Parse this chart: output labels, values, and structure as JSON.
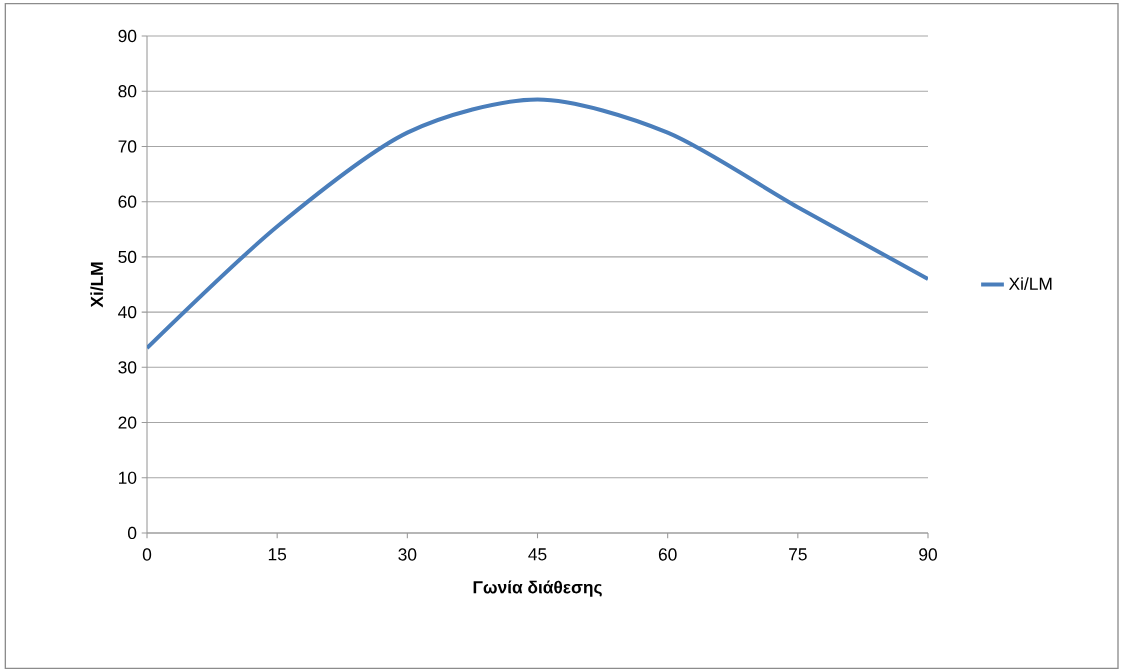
{
  "chart_data": {
    "type": "line",
    "xlabel": "Γωνία διάθεσης",
    "ylabel": "Xi/LM",
    "x": [
      0,
      15,
      30,
      45,
      60,
      75,
      90
    ],
    "series": [
      {
        "name": "Xi/LM",
        "color": "#4a7ebb",
        "values": [
          33.5,
          55.5,
          72.5,
          78.5,
          72.5,
          59,
          46
        ]
      }
    ],
    "xlim": [
      0,
      90
    ],
    "xticks": [
      0,
      15,
      30,
      45,
      60,
      75,
      90
    ],
    "ylim": [
      0,
      90
    ],
    "yticks": [
      0,
      10,
      20,
      30,
      40,
      50,
      60,
      70,
      80,
      90
    ],
    "grid": "y",
    "legend": "right",
    "marker": "none",
    "line_style": "solid"
  }
}
